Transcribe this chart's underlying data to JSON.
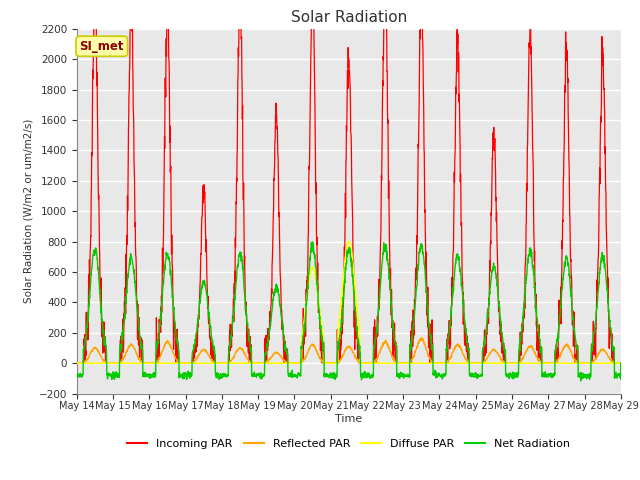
{
  "title": "Solar Radiation",
  "ylabel": "Solar Radiation (W/m2 or um/m2/s)",
  "xlabel": "Time",
  "ylim": [
    -200,
    2200
  ],
  "yticks": [
    -200,
    0,
    200,
    400,
    600,
    800,
    1000,
    1200,
    1400,
    1600,
    1800,
    2000,
    2200
  ],
  "annotation_text": "SI_met",
  "annotation_color": "#8B0000",
  "annotation_bg": "#FFFFAA",
  "annotation_edge": "#CCCC00",
  "bg_color": "#E8E8E8",
  "grid_color": "#FFFFFF",
  "colors": {
    "incoming": "#FF0000",
    "reflected": "#FFA500",
    "diffuse": "#FFFF00",
    "net": "#00CC00"
  },
  "legend_labels": [
    "Incoming PAR",
    "Reflected PAR",
    "Diffuse PAR",
    "Net Radiation"
  ],
  "x_tick_labels": [
    "May 14",
    "May 15",
    "May 16",
    "May 17",
    "May 18",
    "May 19",
    "May 20",
    "May 21",
    "May 22",
    "May 23",
    "May 24",
    "May 25",
    "May 26",
    "May 27",
    "May 28",
    "May 29"
  ],
  "n_days": 15,
  "ppd": 144
}
